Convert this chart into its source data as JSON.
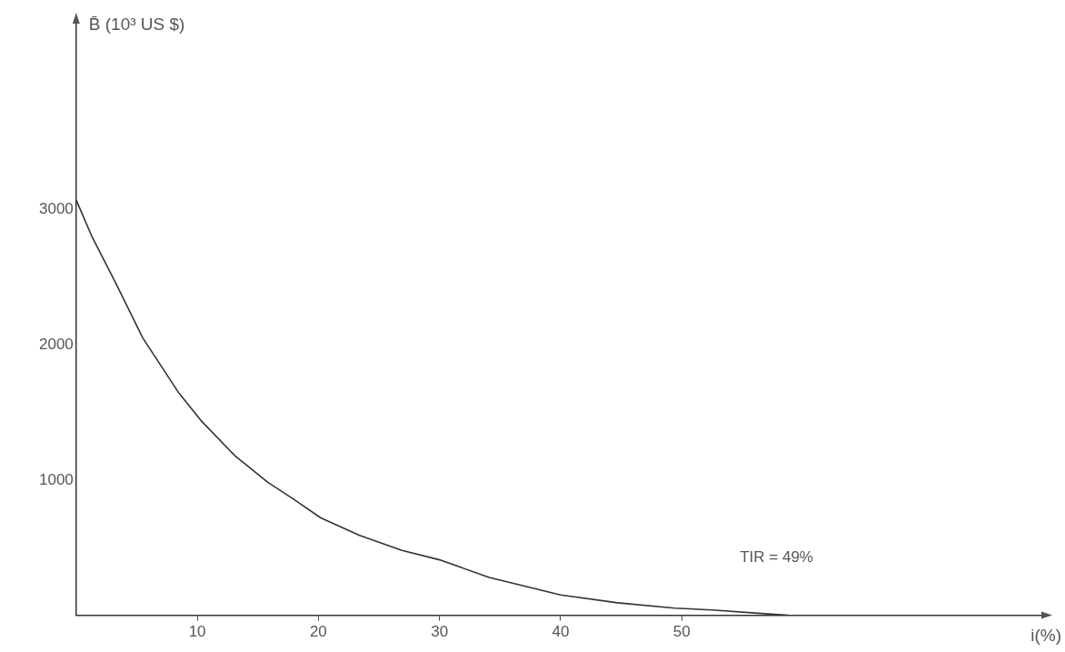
{
  "chart_data": {
    "type": "line",
    "ylabel": "B̄ (10³ US $)",
    "xlabel": "i(%)",
    "x": [
      0,
      1.3,
      3.3,
      5.5,
      8.5,
      10.3,
      13.1,
      15.8,
      18.0,
      20.2,
      23.4,
      26.9,
      30,
      34.1,
      40,
      44.7,
      49.4,
      52.5,
      56.6,
      58.8
    ],
    "series": [
      {
        "color": "#333333",
        "values": [
          3070,
          2800,
          2450,
          2050,
          1640,
          1440,
          1180,
          985,
          855,
          720,
          590,
          480,
          410,
          280,
          150,
          92,
          53,
          39,
          13,
          0
        ]
      }
    ],
    "xlim": [
      0,
      80
    ],
    "xticks": [
      10,
      20,
      30,
      40,
      50
    ],
    "ylim": [
      0,
      4400
    ],
    "yticks": [
      1000,
      2000,
      3000
    ],
    "annotations": [
      "TIR = 49%"
    ],
    "grid": false,
    "legend": false,
    "marker": "none",
    "line_style": "solid"
  }
}
